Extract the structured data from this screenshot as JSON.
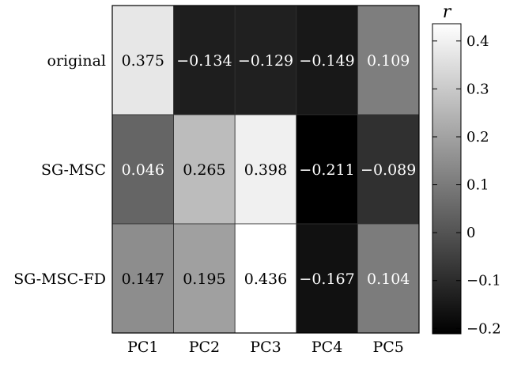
{
  "chart_data": {
    "type": "heatmap",
    "title": "",
    "rows": [
      "original",
      "SG-MSC",
      "SG-MSC-FD"
    ],
    "columns": [
      "PC1",
      "PC2",
      "PC3",
      "PC4",
      "PC5"
    ],
    "values": [
      [
        "0.375",
        "−0.134",
        "−0.129",
        "−0.149",
        "0.109"
      ],
      [
        "0.046",
        "0.265",
        "0.398",
        "−0.211",
        "−0.089"
      ],
      [
        "0.147",
        "0.195",
        "0.436",
        "−0.167",
        "0.104"
      ]
    ],
    "colorbar": {
      "label": "r",
      "range": [
        -0.211,
        0.436
      ],
      "ticks": [
        "0.4",
        "0.3",
        "0.2",
        "0.1",
        "0",
        "−0.1",
        "−0.2"
      ],
      "tick_values": [
        0.4,
        0.3,
        0.2,
        0.1,
        0,
        -0.1,
        -0.2
      ],
      "colormap": "gray",
      "low_color": "#000000",
      "high_color": "#ffffff"
    }
  }
}
